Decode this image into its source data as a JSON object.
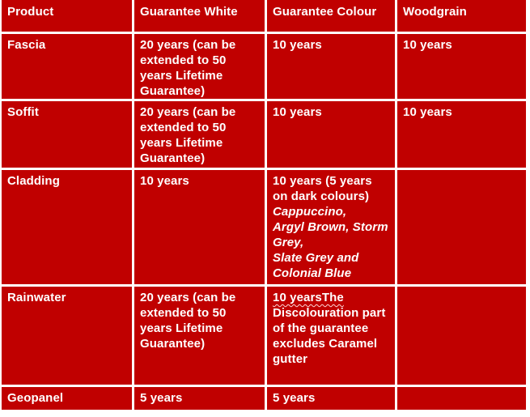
{
  "table": {
    "colors": {
      "cell_bg": "#c00000",
      "grid": "#ffffff",
      "text": "#ffffff",
      "wavy_underline": "#ffd7d7"
    },
    "headers": [
      "Product",
      "Guarantee White",
      "Guarantee Colour",
      "Woodgrain"
    ],
    "rows": [
      {
        "product": "Fascia",
        "guarantee_white": [
          {
            "text": "20 years (can be\nextended to 50\nyears Lifetime\nGuarantee)"
          }
        ],
        "guarantee_colour": [
          {
            "text": "10 years"
          }
        ],
        "woodgrain": [
          {
            "text": "10 years"
          }
        ]
      },
      {
        "product": "Soffit",
        "guarantee_white": [
          {
            "text": "20 years (can be\nextended to 50\nyears Lifetime\nGuarantee)"
          }
        ],
        "guarantee_colour": [
          {
            "text": "10 years"
          }
        ],
        "woodgrain": [
          {
            "text": "10 years"
          }
        ]
      },
      {
        "product": "Cladding",
        "guarantee_white": [
          {
            "text": "10 years"
          }
        ],
        "guarantee_colour": [
          {
            "text": "10 years (5 years\non dark colours)\n"
          },
          {
            "text": "Cappuccino,\nArgyl Brown, Storm\nGrey,\nSlate Grey and\nColonial Blue",
            "italic": true
          }
        ],
        "woodgrain": []
      },
      {
        "product": "Rainwater",
        "guarantee_white": [
          {
            "text": "20 years (can be\nextended to 50\nyears Lifetime\nGuarantee)"
          }
        ],
        "guarantee_colour": [
          {
            "text": "10 yearsThe",
            "wavy": true
          },
          {
            "text": "\nDiscolouration part\nof the guarantee\nexcludes Caramel\ngutter"
          }
        ],
        "woodgrain": []
      },
      {
        "product": "Geopanel",
        "guarantee_white": [
          {
            "text": "5 years"
          }
        ],
        "guarantee_colour": [
          {
            "text": "5 years"
          }
        ],
        "woodgrain": []
      }
    ]
  }
}
